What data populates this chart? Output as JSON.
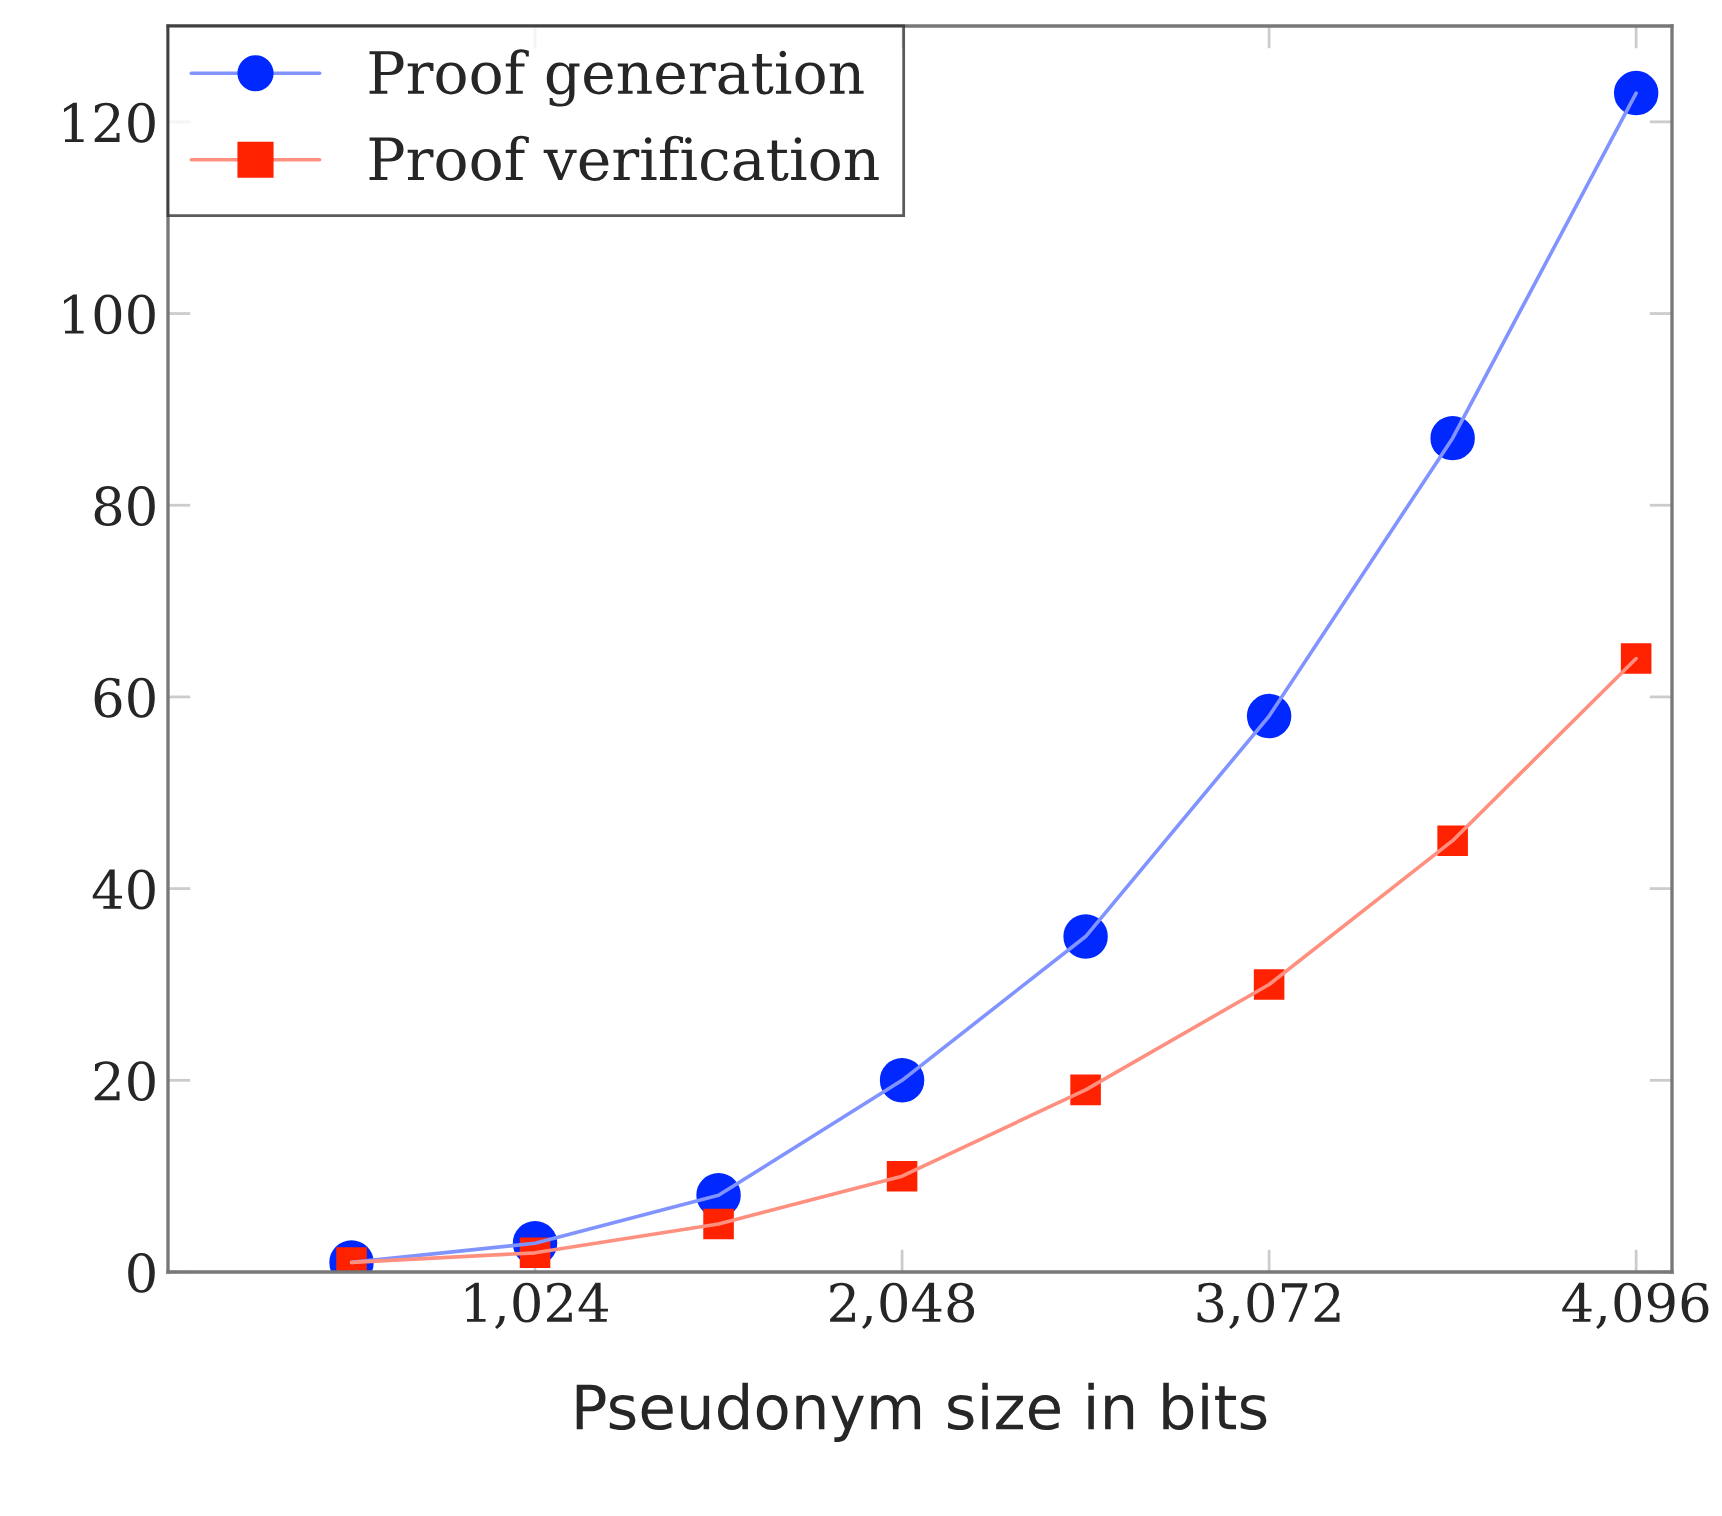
{
  "chart_data": {
    "type": "line",
    "xlabel": "Pseudonym size in bits",
    "x": [
      512,
      1024,
      1536,
      2048,
      2560,
      3072,
      3584,
      4096
    ],
    "series": [
      {
        "name": "Proof generation",
        "color": "#0028ff",
        "marker": "circle",
        "values": [
          1,
          3,
          8,
          20,
          35,
          58,
          87,
          123
        ]
      },
      {
        "name": "Proof verification",
        "color": "#ff2200",
        "marker": "square",
        "values": [
          1,
          2,
          5,
          10,
          19,
          30,
          45,
          64
        ]
      }
    ],
    "xlim": [
      0,
      4196
    ],
    "xticks": [
      {
        "value": 1024,
        "label": "1,024"
      },
      {
        "value": 2048,
        "label": "2,048"
      },
      {
        "value": 3072,
        "label": "3,072"
      },
      {
        "value": 4096,
        "label": "4,096"
      }
    ],
    "ylim": [
      0,
      130
    ],
    "yticks": [
      0,
      20,
      40,
      60,
      80,
      100,
      120
    ],
    "grid": false,
    "legend": "top left",
    "line_style": "solid"
  }
}
